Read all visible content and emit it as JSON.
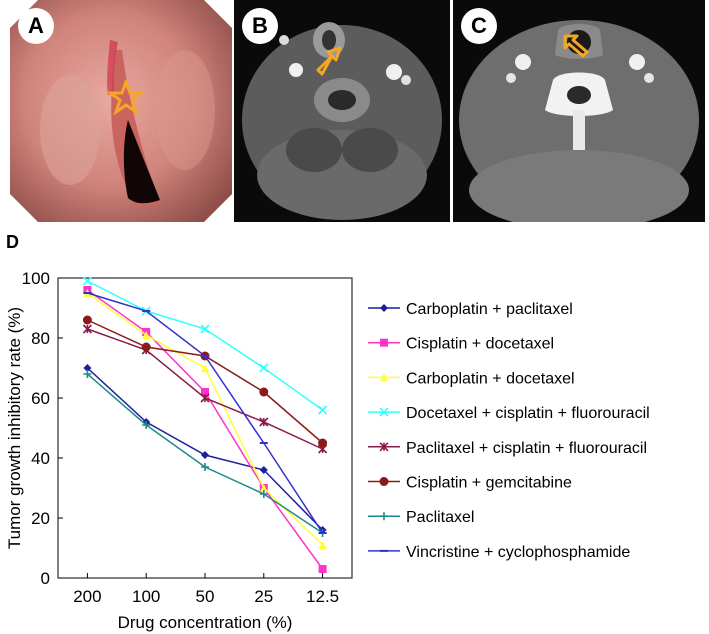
{
  "panels": {
    "a": "A",
    "b": "B",
    "c": "C",
    "d": "D"
  },
  "colors": {
    "star": "#f5a623",
    "arrow": "#f5a623"
  },
  "chart_data": {
    "type": "line",
    "categories": [
      "200",
      "100",
      "50",
      "25",
      "12.5"
    ],
    "xlabel": "Drug concentration (%)",
    "ylabel": "Tumor growth inhibitory rate (%)",
    "ylim": [
      0,
      100
    ],
    "yticks": [
      0,
      20,
      40,
      60,
      80,
      100
    ],
    "grid": false,
    "legend": "right",
    "series": [
      {
        "name": "Carboplatin + paclitaxel",
        "color": "#1f1f9e",
        "marker": "diamond",
        "values": [
          70,
          52,
          41,
          36,
          16
        ]
      },
      {
        "name": "Cisplatin + docetaxel",
        "color": "#ff33cc",
        "marker": "square",
        "values": [
          96,
          82,
          62,
          30,
          3
        ]
      },
      {
        "name": "Carboplatin + docetaxel",
        "color": "#ffff33",
        "marker": "triangle",
        "values": [
          95,
          81,
          70,
          30,
          11
        ]
      },
      {
        "name": "Docetaxel + cisplatin + fluorouracil",
        "color": "#33ffff",
        "marker": "x",
        "values": [
          99,
          89,
          83,
          70,
          56
        ]
      },
      {
        "name": "Paclitaxel + cisplatin + fluorouracil",
        "color": "#8b1a4a",
        "marker": "star",
        "values": [
          83,
          76,
          60,
          52,
          43
        ]
      },
      {
        "name": "Cisplatin + gemcitabine",
        "color": "#8b1a1a",
        "marker": "circle",
        "values": [
          86,
          77,
          74,
          62,
          45
        ]
      },
      {
        "name": "Paclitaxel",
        "color": "#1f8a8a",
        "marker": "plus",
        "values": [
          68,
          51,
          37,
          28,
          15
        ]
      },
      {
        "name": "Vincristine + cyclophosphamide",
        "color": "#3333cc",
        "marker": "dash",
        "values": [
          95,
          89,
          74,
          45,
          15
        ]
      }
    ]
  }
}
